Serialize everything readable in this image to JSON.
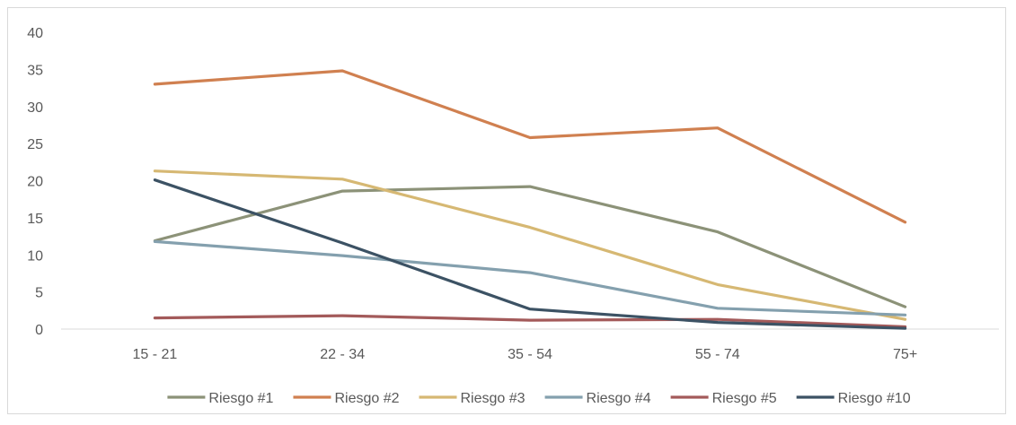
{
  "chart_data": {
    "type": "line",
    "title": "",
    "xlabel": "",
    "ylabel": "",
    "categories": [
      "15 - 21",
      "22 - 34",
      "35 - 54",
      "55 - 74",
      "75+"
    ],
    "ylim": [
      0,
      40
    ],
    "yticks": [
      0,
      5,
      10,
      15,
      20,
      25,
      30,
      35,
      40
    ],
    "grid": false,
    "legend_position": "bottom",
    "series": [
      {
        "name": "Riesgo #1",
        "color": "#8c9278",
        "values": [
          11.9,
          18.6,
          19.2,
          13.1,
          3.0
        ]
      },
      {
        "name": "Riesgo #2",
        "color": "#d08050",
        "values": [
          33.0,
          34.8,
          25.8,
          27.1,
          14.4
        ]
      },
      {
        "name": "Riesgo #3",
        "color": "#d6b873",
        "values": [
          21.3,
          20.2,
          13.7,
          6.0,
          1.3
        ]
      },
      {
        "name": "Riesgo #4",
        "color": "#84a0ae",
        "values": [
          11.8,
          9.9,
          7.6,
          2.8,
          1.9
        ]
      },
      {
        "name": "Riesgo #5",
        "color": "#a35a5a",
        "values": [
          1.5,
          1.8,
          1.2,
          1.3,
          0.3
        ]
      },
      {
        "name": "Riesgo #10",
        "color": "#3c5264",
        "values": [
          20.1,
          11.6,
          2.7,
          0.9,
          0.1
        ]
      }
    ]
  }
}
